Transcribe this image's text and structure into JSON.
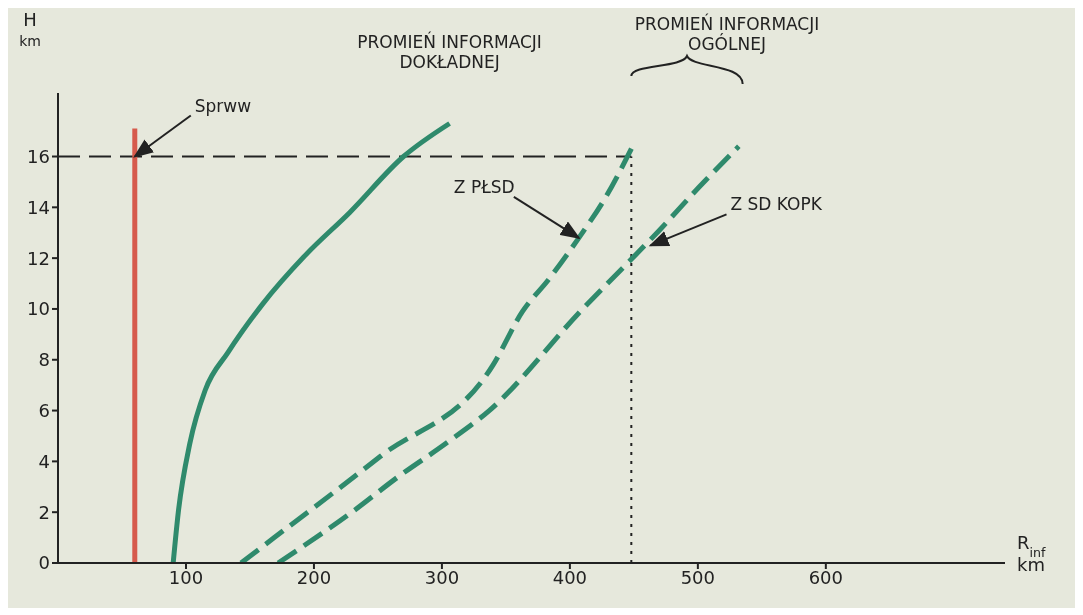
{
  "chart_data": {
    "type": "line",
    "xlabel": "R$_{inf}$\nkm",
    "ylabel": "H\nkm",
    "xlim": [
      0,
      740
    ],
    "ylim": [
      0,
      18.5
    ],
    "xticks": [
      100,
      200,
      300,
      400,
      500,
      600
    ],
    "yticks": [
      0,
      2,
      4,
      6,
      8,
      10,
      12,
      14,
      16
    ],
    "marker": "none",
    "series": [
      {
        "color": "#d65a4c",
        "line_style": "solid",
        "x": [
          60,
          60
        ],
        "values": [
          0,
          17.1
        ]
      },
      {
        "color": "#2f8a6c",
        "line_style": "solid",
        "x": [
          90,
          94,
          103,
          115,
          133,
          160,
          193,
          228,
          270,
          306
        ],
        "values": [
          0,
          2.0,
          4.7,
          6.8,
          8.3,
          10.2,
          12.1,
          13.8,
          16.0,
          17.3
        ]
      },
      {
        "color": "#2f8a6c",
        "line_style": "dashed",
        "x": [
          143,
          169,
          252,
          340,
          363,
          384,
          407,
          428,
          449
        ],
        "values": [
          0,
          1.0,
          4.2,
          7.8,
          9.9,
          11.2,
          12.8,
          14.4,
          16.4
        ]
      },
      {
        "color": "#2f8a6c",
        "line_style": "dashed",
        "x": [
          172,
          231,
          266,
          303,
          337,
          410,
          443,
          470,
          501,
          532
        ],
        "values": [
          0,
          2.05,
          3.4,
          4.7,
          6.0,
          10.0,
          11.7,
          13.1,
          14.8,
          16.4
        ]
      }
    ],
    "ref_lines": [
      {
        "axis": "y",
        "value": 16,
        "line_style": "dashed",
        "color": "#222222"
      },
      {
        "axis": "x",
        "value": 448,
        "line_style": "dotted",
        "color": "#222222"
      }
    ],
    "annotations": [
      {
        "text": "Sprww",
        "x": 60,
        "y": 16
      },
      {
        "text": "PROMIEŃ INFORMACJI\nDOKŁADNEJ",
        "x": 306,
        "y": 17.3
      },
      {
        "text": "Z PŁSD",
        "x": 407,
        "y": 12.8
      },
      {
        "text": "PROMIEŃ INFORMACJI\nOGÓLNEJ"
      },
      {
        "text": "Z SD KOPK",
        "x": 463,
        "y": 12.5
      }
    ]
  }
}
